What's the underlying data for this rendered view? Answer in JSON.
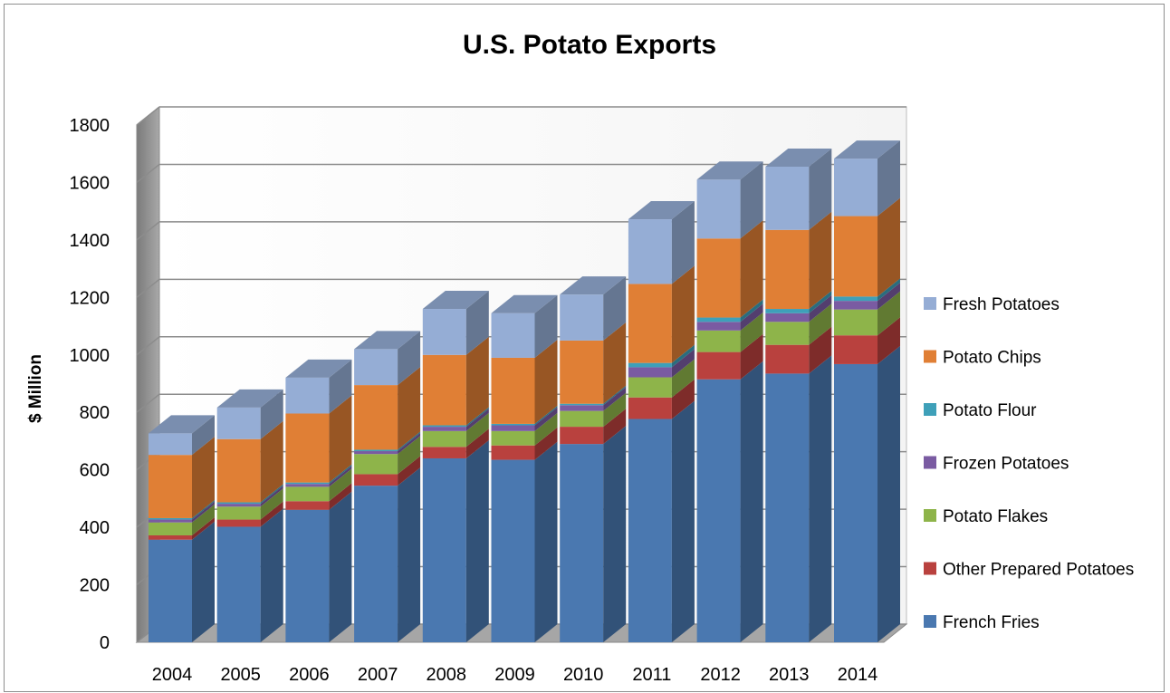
{
  "chart_data": {
    "type": "bar",
    "stacked": true,
    "three_d": true,
    "title": "U.S. Potato Exports",
    "ylabel": "$ Million",
    "xlabel": "",
    "ylim": [
      0,
      1800
    ],
    "yticks": [
      0,
      200,
      400,
      600,
      800,
      1000,
      1200,
      1400,
      1600,
      1800
    ],
    "grid": true,
    "legend_position": "right",
    "categories": [
      "2004",
      "2005",
      "2006",
      "2007",
      "2008",
      "2009",
      "2010",
      "2011",
      "2012",
      "2013",
      "2014"
    ],
    "series": [
      {
        "name": "French Fries",
        "color": "#4a78b0",
        "values": [
          357,
          402,
          461,
          545,
          640,
          635,
          690,
          777,
          915,
          935,
          968
        ]
      },
      {
        "name": "Other Prepared Potatoes",
        "color": "#b9413e",
        "values": [
          15,
          25,
          30,
          40,
          40,
          50,
          60,
          75,
          95,
          100,
          100
        ]
      },
      {
        "name": "Potato Flakes",
        "color": "#8eb44a",
        "values": [
          45,
          45,
          50,
          70,
          55,
          50,
          55,
          70,
          75,
          80,
          90
        ]
      },
      {
        "name": "Frozen Potatoes",
        "color": "#7a5ba2",
        "values": [
          10,
          10,
          10,
          10,
          15,
          20,
          20,
          35,
          30,
          30,
          30
        ]
      },
      {
        "name": "Potato Flour",
        "color": "#3ea0b9",
        "values": [
          5,
          5,
          5,
          5,
          5,
          5,
          5,
          15,
          15,
          15,
          15
        ]
      },
      {
        "name": "Potato Chips",
        "color": "#e07f35",
        "values": [
          220,
          220,
          240,
          225,
          245,
          230,
          220,
          275,
          275,
          275,
          280
        ]
      },
      {
        "name": "Fresh Potatoes",
        "color": "#95add5",
        "values": [
          75,
          110,
          125,
          125,
          160,
          155,
          160,
          225,
          205,
          220,
          200
        ]
      }
    ]
  }
}
